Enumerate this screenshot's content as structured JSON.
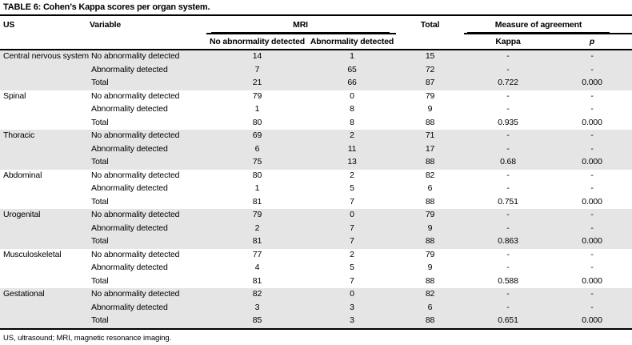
{
  "title": "TABLE 6: Cohen’s Kappa scores per organ system.",
  "footnote": "US, ultrasound; MRI, magnetic resonance imaging.",
  "table": {
    "header": {
      "us": "US",
      "variable": "Variable",
      "mri": "MRI",
      "total": "Total",
      "measure_of_agreement": "Measure of agreement",
      "no_abnormality": "No abnormality detected",
      "abnormality": "Abnormality detected",
      "kappa": "Kappa",
      "p": "p"
    },
    "groups": [
      {
        "us": "Central nervous system",
        "shaded": true,
        "rows": [
          {
            "variable": "No abnormality detected",
            "no_abn": "14",
            "abn": "1",
            "total": "15",
            "kappa": "-",
            "p": "-"
          },
          {
            "variable": "Abnormality detected",
            "no_abn": "7",
            "abn": "65",
            "total": "72",
            "kappa": "-",
            "p": "-"
          },
          {
            "variable": "Total",
            "no_abn": "21",
            "abn": "66",
            "total": "87",
            "kappa": "0.722",
            "p": "0.000"
          }
        ]
      },
      {
        "us": "Spinal",
        "shaded": false,
        "rows": [
          {
            "variable": "No abnormality detected",
            "no_abn": "79",
            "abn": "0",
            "total": "79",
            "kappa": "-",
            "p": "-"
          },
          {
            "variable": "Abnormality detected",
            "no_abn": "1",
            "abn": "8",
            "total": "9",
            "kappa": "-",
            "p": "-"
          },
          {
            "variable": "Total",
            "no_abn": "80",
            "abn": "8",
            "total": "88",
            "kappa": "0.935",
            "p": "0.000"
          }
        ]
      },
      {
        "us": "Thoracic",
        "shaded": true,
        "rows": [
          {
            "variable": "No abnormality detected",
            "no_abn": "69",
            "abn": "2",
            "total": "71",
            "kappa": "-",
            "p": "-"
          },
          {
            "variable": "Abnormality detected",
            "no_abn": "6",
            "abn": "11",
            "total": "17",
            "kappa": "-",
            "p": "-"
          },
          {
            "variable": "Total",
            "no_abn": "75",
            "abn": "13",
            "total": "88",
            "kappa": "0.68",
            "p": "0.000"
          }
        ]
      },
      {
        "us": "Abdominal",
        "shaded": false,
        "rows": [
          {
            "variable": "No abnormality detected",
            "no_abn": "80",
            "abn": "2",
            "total": "82",
            "kappa": "-",
            "p": "-"
          },
          {
            "variable": "Abnormality detected",
            "no_abn": "1",
            "abn": "5",
            "total": "6",
            "kappa": "-",
            "p": "-"
          },
          {
            "variable": "Total",
            "no_abn": "81",
            "abn": "7",
            "total": "88",
            "kappa": "0.751",
            "p": "0.000"
          }
        ]
      },
      {
        "us": "Urogenital",
        "shaded": true,
        "rows": [
          {
            "variable": "No abnormality detected",
            "no_abn": "79",
            "abn": "0",
            "total": "79",
            "kappa": "-",
            "p": "-"
          },
          {
            "variable": "Abnormality detected",
            "no_abn": "2",
            "abn": "7",
            "total": "9",
            "kappa": "-",
            "p": "-"
          },
          {
            "variable": "Total",
            "no_abn": "81",
            "abn": "7",
            "total": "88",
            "kappa": "0.863",
            "p": "0.000"
          }
        ]
      },
      {
        "us": "Musculoskeletal",
        "shaded": false,
        "rows": [
          {
            "variable": "No abnormality detected",
            "no_abn": "77",
            "abn": "2",
            "total": "79",
            "kappa": "-",
            "p": "-"
          },
          {
            "variable": "Abnormality detected",
            "no_abn": "4",
            "abn": "5",
            "total": "9",
            "kappa": "-",
            "p": "-"
          },
          {
            "variable": "Total",
            "no_abn": "81",
            "abn": "7",
            "total": "88",
            "kappa": "0.588",
            "p": "0.000"
          }
        ]
      },
      {
        "us": "Gestational",
        "shaded": true,
        "rows": [
          {
            "variable": "No abnormality detected",
            "no_abn": "82",
            "abn": "0",
            "total": "82",
            "kappa": "-",
            "p": "-"
          },
          {
            "variable": "Abnormality detected",
            "no_abn": "3",
            "abn": "3",
            "total": "6",
            "kappa": "-",
            "p": "-"
          },
          {
            "variable": "Total",
            "no_abn": "85",
            "abn": "3",
            "total": "88",
            "kappa": "0.651",
            "p": "0.000"
          }
        ]
      }
    ]
  }
}
